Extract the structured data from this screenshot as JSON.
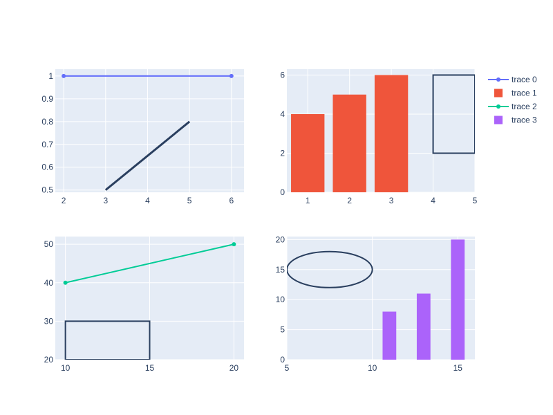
{
  "theme": {
    "plot_bg": "#E5ECF6",
    "paper_bg": "#FFFFFF",
    "grid_color": "#FFFFFF",
    "text_color": "#2a3f5f",
    "shape_color": "#2a3f5f"
  },
  "legend": {
    "placement": "top-right",
    "items": [
      {
        "label": "trace 0",
        "kind": "line-marker",
        "color": "#636EFA"
      },
      {
        "label": "trace 1",
        "kind": "bar",
        "color": "#EF553B"
      },
      {
        "label": "trace 2",
        "kind": "line-marker",
        "color": "#00CC96"
      },
      {
        "label": "trace 3",
        "kind": "bar",
        "color": "#AB63FA"
      }
    ]
  },
  "chart_data": [
    {
      "type": "line",
      "grid": true,
      "xlim": [
        1.8,
        6.3
      ],
      "ylim": [
        0.49,
        1.03
      ],
      "xticks": [
        2,
        3,
        4,
        5,
        6
      ],
      "yticks": [
        0.5,
        0.6,
        0.7,
        0.8,
        0.9,
        1
      ],
      "ytick_labels": [
        "0.5",
        "0.6",
        "0.7",
        "0.8",
        "0.9",
        "1"
      ],
      "series": [
        {
          "name": "trace 0",
          "mode": "lines+markers",
          "color": "#636EFA",
          "x": [
            2,
            6
          ],
          "y": [
            1,
            1
          ]
        }
      ],
      "shapes": [
        {
          "type": "line",
          "x0": 3,
          "y0": 0.5,
          "x1": 5,
          "y1": 0.8
        }
      ]
    },
    {
      "type": "bar",
      "grid": true,
      "xlim": [
        0.5,
        5
      ],
      "ylim": [
        0,
        6.3
      ],
      "xticks": [
        1,
        2,
        3,
        4,
        5
      ],
      "yticks": [
        0,
        2,
        4,
        6
      ],
      "series": [
        {
          "name": "trace 1",
          "color": "#EF553B",
          "x": [
            1,
            2,
            3
          ],
          "y": [
            4,
            5,
            6
          ]
        }
      ],
      "shapes": [
        {
          "type": "rect",
          "x0": 4,
          "y0": 2,
          "x1": 5,
          "y1": 6
        }
      ]
    },
    {
      "type": "line",
      "grid": true,
      "xlim": [
        9.4,
        20.6
      ],
      "ylim": [
        20,
        52
      ],
      "xticks": [
        10,
        15,
        20
      ],
      "yticks": [
        20,
        30,
        40,
        50
      ],
      "series": [
        {
          "name": "trace 2",
          "mode": "lines+markers",
          "color": "#00CC96",
          "x": [
            10,
            20
          ],
          "y": [
            40,
            50
          ]
        }
      ],
      "shapes": [
        {
          "type": "rect",
          "x0": 10,
          "y0": 20,
          "x1": 15,
          "y1": 30
        }
      ]
    },
    {
      "type": "bar",
      "grid": true,
      "xlim": [
        5,
        16
      ],
      "ylim": [
        0,
        20.5
      ],
      "xticks": [
        5,
        10,
        15
      ],
      "yticks": [
        0,
        5,
        10,
        15,
        20
      ],
      "series": [
        {
          "name": "trace 3",
          "color": "#AB63FA",
          "x": [
            11,
            13,
            15
          ],
          "y": [
            8,
            11,
            20
          ]
        }
      ],
      "shapes": [
        {
          "type": "circle",
          "x0": 5,
          "y0": 12,
          "x1": 10,
          "y1": 18
        }
      ]
    }
  ]
}
